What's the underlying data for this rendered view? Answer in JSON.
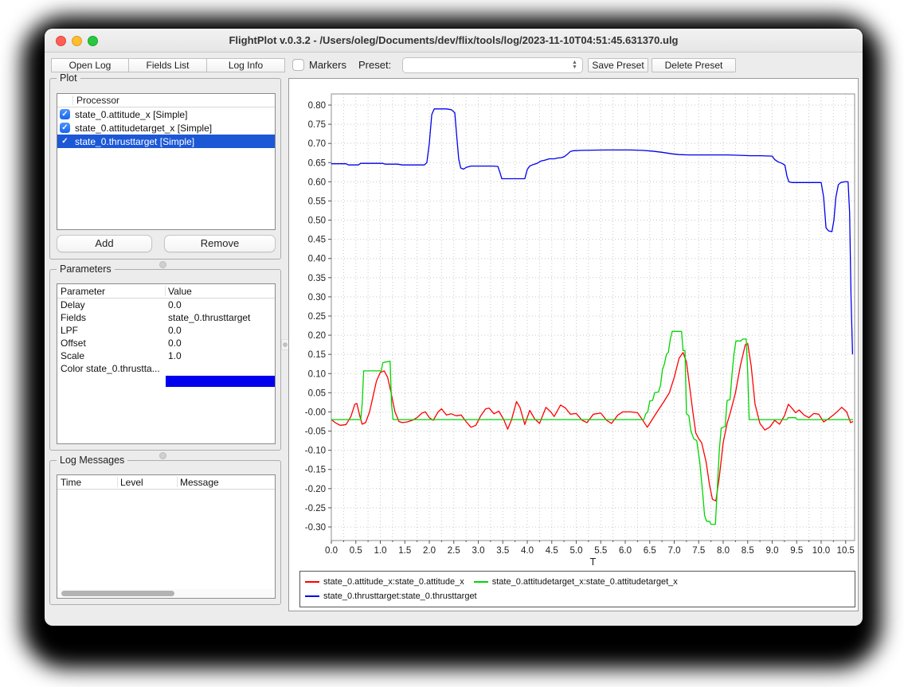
{
  "window": {
    "title": "FlightPlot v.0.3.2 - /Users/oleg/Documents/dev/flix/tools/log/2023-11-10T04:51:45.631370.ulg"
  },
  "toolbar": {
    "open_log": "Open Log",
    "fields_list": "Fields List",
    "log_info": "Log Info",
    "markers_label": "Markers",
    "markers_checked": false,
    "preset_label": "Preset:",
    "preset_value": "",
    "save_preset": "Save Preset",
    "delete_preset": "Delete Preset"
  },
  "plot_panel": {
    "title": "Plot",
    "header": "Processor",
    "items": [
      {
        "label": "state_0.attitude_x [Simple]",
        "checked": true,
        "selected": false
      },
      {
        "label": "state_0.attitudetarget_x [Simple]",
        "checked": true,
        "selected": false
      },
      {
        "label": "state_0.thrusttarget [Simple]",
        "checked": true,
        "selected": true
      }
    ],
    "add_label": "Add",
    "remove_label": "Remove"
  },
  "parameters_panel": {
    "title": "Parameters",
    "columns": [
      "Parameter",
      "Value"
    ],
    "rows": [
      [
        "Delay",
        "0.0"
      ],
      [
        "Fields",
        "state_0.thrusttarget"
      ],
      [
        "LPF",
        "0.0"
      ],
      [
        "Offset",
        "0.0"
      ],
      [
        "Scale",
        "1.0"
      ]
    ],
    "color_row": {
      "label": "Color state_0.thrustta...",
      "swatch_color": "#0000ee"
    }
  },
  "log_panel": {
    "title": "Log Messages",
    "columns": [
      "Time",
      "Level",
      "Message"
    ],
    "rows": []
  },
  "chart_data": {
    "type": "line",
    "xlabel": "T",
    "ylabel": "",
    "xlim": [
      0,
      10.5
    ],
    "ylim": [
      -0.3,
      0.8
    ],
    "xtick_step": 0.5,
    "xgrid_step": 0.25,
    "ytick_step": 0.05,
    "x_decimals": 1,
    "y_decimals": 2,
    "grid": true,
    "grid_color": "#c8c8c8",
    "legend_position": "bottom",
    "series": [
      {
        "name": "state_0.attitude_x:state_0.attitude_x",
        "color": "#ff0000",
        "points": [
          [
            0,
            -0.02
          ],
          [
            0.08,
            -0.028
          ],
          [
            0.18,
            -0.035
          ],
          [
            0.3,
            -0.033
          ],
          [
            0.4,
            -0.012
          ],
          [
            0.48,
            0.02
          ],
          [
            0.52,
            0.022
          ],
          [
            0.58,
            -0.01
          ],
          [
            0.63,
            -0.032
          ],
          [
            0.7,
            -0.028
          ],
          [
            0.78,
            0.0
          ],
          [
            0.85,
            0.04
          ],
          [
            0.92,
            0.08
          ],
          [
            1.0,
            0.103
          ],
          [
            1.08,
            0.107
          ],
          [
            1.15,
            0.09
          ],
          [
            1.22,
            0.05
          ],
          [
            1.3,
            0.0
          ],
          [
            1.38,
            -0.025
          ],
          [
            1.45,
            -0.028
          ],
          [
            1.55,
            -0.026
          ],
          [
            1.65,
            -0.022
          ],
          [
            1.75,
            -0.015
          ],
          [
            1.85,
            -0.003
          ],
          [
            1.92,
            0.0
          ],
          [
            2.0,
            -0.015
          ],
          [
            2.08,
            -0.022
          ],
          [
            2.18,
            0.0
          ],
          [
            2.25,
            0.008
          ],
          [
            2.35,
            -0.008
          ],
          [
            2.45,
            -0.005
          ],
          [
            2.55,
            -0.01
          ],
          [
            2.65,
            -0.008
          ],
          [
            2.75,
            -0.025
          ],
          [
            2.85,
            -0.04
          ],
          [
            2.95,
            -0.035
          ],
          [
            3.05,
            -0.01
          ],
          [
            3.15,
            0.008
          ],
          [
            3.22,
            0.01
          ],
          [
            3.32,
            -0.005
          ],
          [
            3.42,
            0.002
          ],
          [
            3.52,
            -0.02
          ],
          [
            3.6,
            -0.045
          ],
          [
            3.68,
            -0.02
          ],
          [
            3.78,
            0.027
          ],
          [
            3.85,
            0.012
          ],
          [
            3.95,
            -0.033
          ],
          [
            4.05,
            0.004
          ],
          [
            4.15,
            -0.018
          ],
          [
            4.25,
            -0.03
          ],
          [
            4.38,
            0.012
          ],
          [
            4.48,
            0.0
          ],
          [
            4.55,
            -0.012
          ],
          [
            4.68,
            0.018
          ],
          [
            4.78,
            0.01
          ],
          [
            4.88,
            -0.006
          ],
          [
            5.0,
            -0.004
          ],
          [
            5.12,
            -0.022
          ],
          [
            5.22,
            -0.028
          ],
          [
            5.35,
            -0.006
          ],
          [
            5.5,
            -0.003
          ],
          [
            5.62,
            -0.022
          ],
          [
            5.72,
            -0.03
          ],
          [
            5.85,
            -0.008
          ],
          [
            5.95,
            0.0
          ],
          [
            6.1,
            0.0
          ],
          [
            6.25,
            -0.002
          ],
          [
            6.35,
            -0.02
          ],
          [
            6.45,
            -0.04
          ],
          [
            6.55,
            -0.02
          ],
          [
            6.65,
            0.0
          ],
          [
            6.78,
            0.025
          ],
          [
            6.9,
            0.05
          ],
          [
            7.0,
            0.09
          ],
          [
            7.1,
            0.14
          ],
          [
            7.18,
            0.155
          ],
          [
            7.25,
            0.13
          ],
          [
            7.32,
            0.06
          ],
          [
            7.38,
            0.0
          ],
          [
            7.44,
            -0.055
          ],
          [
            7.5,
            -0.07
          ],
          [
            7.56,
            -0.08
          ],
          [
            7.65,
            -0.13
          ],
          [
            7.72,
            -0.19
          ],
          [
            7.78,
            -0.228
          ],
          [
            7.85,
            -0.232
          ],
          [
            7.92,
            -0.17
          ],
          [
            8.0,
            -0.08
          ],
          [
            8.08,
            -0.03
          ],
          [
            8.15,
            0.0
          ],
          [
            8.25,
            0.05
          ],
          [
            8.35,
            0.12
          ],
          [
            8.45,
            0.175
          ],
          [
            8.5,
            0.178
          ],
          [
            8.57,
            0.12
          ],
          [
            8.65,
            0.02
          ],
          [
            8.75,
            -0.03
          ],
          [
            8.85,
            -0.047
          ],
          [
            8.95,
            -0.04
          ],
          [
            9.05,
            -0.022
          ],
          [
            9.15,
            -0.032
          ],
          [
            9.25,
            -0.01
          ],
          [
            9.33,
            0.02
          ],
          [
            9.4,
            0.01
          ],
          [
            9.48,
            -0.002
          ],
          [
            9.55,
            0.005
          ],
          [
            9.65,
            -0.008
          ],
          [
            9.75,
            -0.015
          ],
          [
            9.85,
            -0.004
          ],
          [
            9.95,
            -0.006
          ],
          [
            10.05,
            -0.026
          ],
          [
            10.15,
            -0.018
          ],
          [
            10.28,
            -0.005
          ],
          [
            10.42,
            0.012
          ],
          [
            10.52,
            0.0
          ],
          [
            10.6,
            -0.028
          ],
          [
            10.65,
            -0.025
          ]
        ]
      },
      {
        "name": "state_0.attitudetarget_x:state_0.attitudetarget_x",
        "color": "#00d500",
        "points": [
          [
            0,
            -0.02
          ],
          [
            0.6,
            -0.02
          ],
          [
            0.63,
            0.02
          ],
          [
            0.66,
            0.107
          ],
          [
            1.02,
            0.107
          ],
          [
            1.05,
            0.128
          ],
          [
            1.1,
            0.13
          ],
          [
            1.2,
            0.132
          ],
          [
            1.23,
            0.02
          ],
          [
            1.26,
            -0.02
          ],
          [
            6.38,
            -0.02
          ],
          [
            6.42,
            -0.005
          ],
          [
            6.46,
            0.0
          ],
          [
            6.5,
            0.028
          ],
          [
            6.56,
            0.03
          ],
          [
            6.6,
            0.05
          ],
          [
            6.68,
            0.052
          ],
          [
            6.72,
            0.07
          ],
          [
            6.76,
            0.11
          ],
          [
            6.8,
            0.125
          ],
          [
            6.84,
            0.15
          ],
          [
            6.88,
            0.155
          ],
          [
            6.92,
            0.19
          ],
          [
            6.96,
            0.21
          ],
          [
            7.15,
            0.21
          ],
          [
            7.18,
            0.16
          ],
          [
            7.22,
            0.16
          ],
          [
            7.25,
            -0.005
          ],
          [
            7.3,
            -0.01
          ],
          [
            7.34,
            -0.05
          ],
          [
            7.4,
            -0.07
          ],
          [
            7.46,
            -0.075
          ],
          [
            7.52,
            -0.13
          ],
          [
            7.58,
            -0.21
          ],
          [
            7.62,
            -0.27
          ],
          [
            7.66,
            -0.285
          ],
          [
            7.72,
            -0.285
          ],
          [
            7.75,
            -0.293
          ],
          [
            7.84,
            -0.293
          ],
          [
            7.88,
            -0.2
          ],
          [
            7.92,
            -0.1
          ],
          [
            7.96,
            -0.042
          ],
          [
            8.04,
            -0.038
          ],
          [
            8.08,
            0.03
          ],
          [
            8.14,
            0.032
          ],
          [
            8.18,
            0.1
          ],
          [
            8.22,
            0.15
          ],
          [
            8.26,
            0.185
          ],
          [
            8.36,
            0.185
          ],
          [
            8.4,
            0.19
          ],
          [
            8.47,
            0.19
          ],
          [
            8.5,
            0.1
          ],
          [
            8.53,
            -0.02
          ],
          [
            9.3,
            -0.02
          ],
          [
            9.33,
            -0.015
          ],
          [
            9.48,
            -0.015
          ],
          [
            9.51,
            -0.02
          ],
          [
            10.65,
            -0.02
          ]
        ]
      },
      {
        "name": "state_0.thrusttarget:state_0.thrusttarget",
        "color": "#0000ee",
        "points": [
          [
            0,
            0.647
          ],
          [
            0.3,
            0.647
          ],
          [
            0.35,
            0.644
          ],
          [
            0.55,
            0.644
          ],
          [
            0.6,
            0.648
          ],
          [
            1.05,
            0.648
          ],
          [
            1.1,
            0.646
          ],
          [
            1.35,
            0.646
          ],
          [
            1.45,
            0.644
          ],
          [
            1.9,
            0.644
          ],
          [
            1.95,
            0.65
          ],
          [
            2.0,
            0.7
          ],
          [
            2.05,
            0.775
          ],
          [
            2.1,
            0.79
          ],
          [
            2.35,
            0.79
          ],
          [
            2.45,
            0.788
          ],
          [
            2.52,
            0.78
          ],
          [
            2.56,
            0.72
          ],
          [
            2.6,
            0.66
          ],
          [
            2.64,
            0.636
          ],
          [
            2.7,
            0.633
          ],
          [
            2.76,
            0.638
          ],
          [
            2.85,
            0.641
          ],
          [
            3.3,
            0.641
          ],
          [
            3.4,
            0.64
          ],
          [
            3.44,
            0.625
          ],
          [
            3.48,
            0.608
          ],
          [
            3.95,
            0.608
          ],
          [
            4.0,
            0.632
          ],
          [
            4.05,
            0.641
          ],
          [
            4.12,
            0.645
          ],
          [
            4.2,
            0.648
          ],
          [
            4.28,
            0.654
          ],
          [
            4.35,
            0.656
          ],
          [
            4.45,
            0.66
          ],
          [
            4.55,
            0.66
          ],
          [
            4.62,
            0.662
          ],
          [
            4.7,
            0.663
          ],
          [
            4.76,
            0.666
          ],
          [
            4.82,
            0.672
          ],
          [
            4.88,
            0.679
          ],
          [
            4.95,
            0.681
          ],
          [
            5.1,
            0.682
          ],
          [
            5.6,
            0.683
          ],
          [
            6.1,
            0.683
          ],
          [
            6.35,
            0.682
          ],
          [
            6.55,
            0.68
          ],
          [
            6.75,
            0.677
          ],
          [
            6.95,
            0.673
          ],
          [
            7.1,
            0.671
          ],
          [
            7.3,
            0.67
          ],
          [
            7.7,
            0.67
          ],
          [
            8.1,
            0.67
          ],
          [
            8.35,
            0.669
          ],
          [
            8.55,
            0.668
          ],
          [
            8.75,
            0.668
          ],
          [
            9.0,
            0.667
          ],
          [
            9.05,
            0.658
          ],
          [
            9.12,
            0.652
          ],
          [
            9.2,
            0.648
          ],
          [
            9.26,
            0.643
          ],
          [
            9.3,
            0.615
          ],
          [
            9.34,
            0.6
          ],
          [
            9.4,
            0.598
          ],
          [
            10.0,
            0.598
          ],
          [
            10.05,
            0.56
          ],
          [
            10.1,
            0.48
          ],
          [
            10.15,
            0.472
          ],
          [
            10.22,
            0.47
          ],
          [
            10.26,
            0.5
          ],
          [
            10.3,
            0.56
          ],
          [
            10.35,
            0.592
          ],
          [
            10.4,
            0.598
          ],
          [
            10.48,
            0.6
          ],
          [
            10.55,
            0.6
          ],
          [
            10.58,
            0.52
          ],
          [
            10.61,
            0.3
          ],
          [
            10.64,
            0.15
          ]
        ]
      }
    ]
  }
}
